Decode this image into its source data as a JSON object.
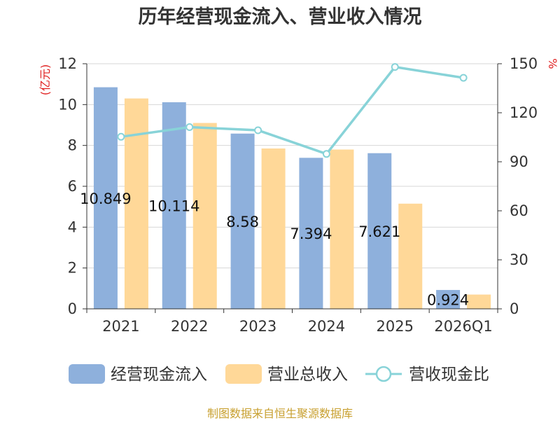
{
  "chart_data": {
    "type": "bar",
    "title": "历年经营现金流入、营业收入情况",
    "categories": [
      "2021",
      "2022",
      "2023",
      "2024",
      "2025",
      "2026Q1"
    ],
    "y_left": {
      "unit": "(亿元)",
      "range": [
        0,
        12
      ],
      "ticks": [
        "0",
        "2",
        "4",
        "6",
        "8",
        "10",
        "12"
      ]
    },
    "y_right": {
      "unit": "%",
      "range": [
        0,
        150
      ],
      "ticks": [
        "0",
        "30",
        "60",
        "90",
        "120",
        "150"
      ]
    },
    "grid": true,
    "legend_position": "bottom",
    "series": [
      {
        "name": "经营现金流入",
        "type": "bar",
        "axis": "left",
        "color": "#8eb0dc",
        "values": [
          10.849,
          10.114,
          8.58,
          7.394,
          7.621,
          0.924
        ],
        "labels": [
          "10.849",
          "10.114",
          "8.58",
          "7.394",
          "7.621",
          "0.924"
        ]
      },
      {
        "name": "营业总收入",
        "type": "bar",
        "axis": "left",
        "color": "#ffd898",
        "values": [
          10.3,
          9.1,
          7.85,
          7.8,
          5.15,
          0.7
        ]
      },
      {
        "name": "营收现金比",
        "type": "line",
        "axis": "right",
        "color": "#88d3d8",
        "values": [
          105.3,
          111.2,
          109.3,
          94.8,
          148.0,
          141.4
        ]
      }
    ],
    "source": "制图数据来自恒生聚源数据库",
    "colors": {
      "unit_text": "#e02020",
      "source_text": "#c8a030",
      "axis": "#333333",
      "grid": "#d7d7d7"
    }
  }
}
